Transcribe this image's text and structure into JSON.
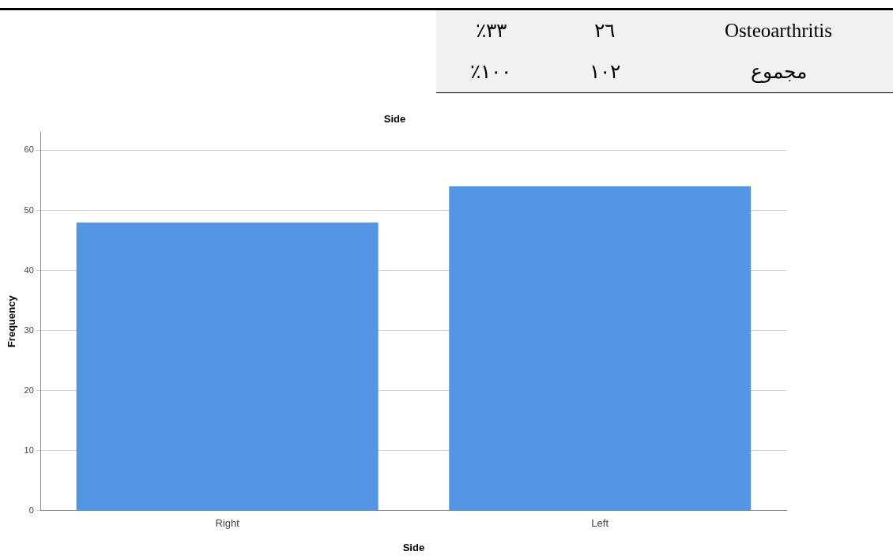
{
  "chart_data": [
    {
      "type": "other",
      "annotations": [
        "Osteoarthritis",
        "٢٦",
        "٣٣٪",
        "مجموع",
        "١٠٢",
        "١٠٠٪"
      ]
    },
    {
      "type": "bar",
      "title": "Side",
      "xlabel": "Side",
      "ylabel": "Frequency",
      "categories": [
        "Right",
        "Left"
      ],
      "values": [
        48,
        54
      ],
      "color": "#5596e3",
      "ylim": [
        0,
        63
      ],
      "yticks": [
        0,
        10,
        20,
        30,
        40,
        50,
        60
      ],
      "grid": "y"
    }
  ]
}
